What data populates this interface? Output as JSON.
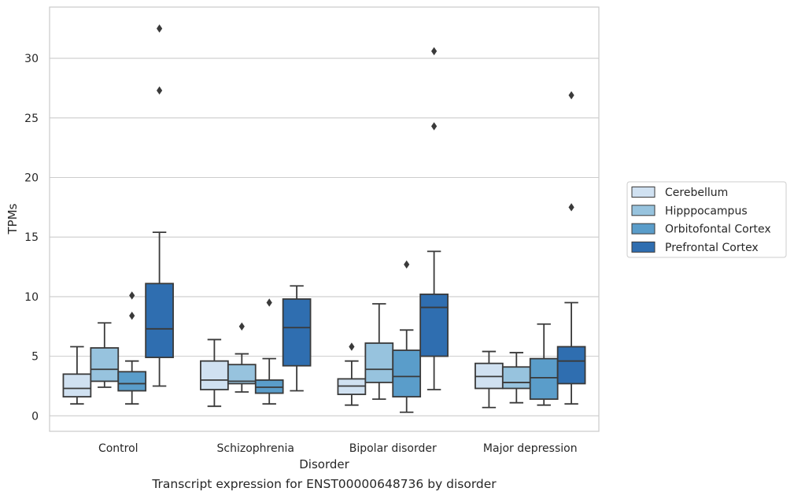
{
  "chart_data": {
    "type": "box",
    "caption": "Transcript expression for ENST00000648736 by disorder",
    "xlabel": "Disorder",
    "ylabel": "TPMs",
    "ylim": [
      -1.3,
      34.3
    ],
    "yticks": [
      0,
      5,
      10,
      15,
      20,
      25,
      30
    ],
    "grid": "horizontal",
    "legend_position": "right",
    "categories": [
      "Control",
      "Schizophrenia",
      "Bipolar disorder",
      "Major depression"
    ],
    "series": [
      {
        "name": "Cerebellum",
        "color": "#d0e1f1",
        "boxes": [
          {
            "whisker_low": 1.0,
            "q1": 1.6,
            "median": 2.3,
            "q3": 3.5,
            "whisker_high": 5.8,
            "outliers": []
          },
          {
            "whisker_low": 0.8,
            "q1": 2.2,
            "median": 3.0,
            "q3": 4.6,
            "whisker_high": 6.4,
            "outliers": []
          },
          {
            "whisker_low": 0.9,
            "q1": 1.8,
            "median": 2.5,
            "q3": 3.1,
            "whisker_high": 4.6,
            "outliers": [
              5.8
            ]
          },
          {
            "whisker_low": 0.7,
            "q1": 2.3,
            "median": 3.3,
            "q3": 4.4,
            "whisker_high": 5.4,
            "outliers": []
          }
        ]
      },
      {
        "name": "Hipppocampus",
        "color": "#97c3de",
        "boxes": [
          {
            "whisker_low": 2.4,
            "q1": 2.9,
            "median": 3.9,
            "q3": 5.7,
            "whisker_high": 7.8,
            "outliers": []
          },
          {
            "whisker_low": 2.0,
            "q1": 2.7,
            "median": 2.9,
            "q3": 4.3,
            "whisker_high": 5.2,
            "outliers": [
              7.5
            ]
          },
          {
            "whisker_low": 1.4,
            "q1": 2.8,
            "median": 3.9,
            "q3": 6.1,
            "whisker_high": 9.4,
            "outliers": []
          },
          {
            "whisker_low": 1.1,
            "q1": 2.3,
            "median": 2.8,
            "q3": 4.1,
            "whisker_high": 5.3,
            "outliers": []
          }
        ]
      },
      {
        "name": "Orbitofontal Cortex",
        "color": "#5a9dca",
        "boxes": [
          {
            "whisker_low": 1.0,
            "q1": 2.1,
            "median": 2.7,
            "q3": 3.7,
            "whisker_high": 4.6,
            "outliers": [
              8.4,
              10.1
            ]
          },
          {
            "whisker_low": 1.0,
            "q1": 1.9,
            "median": 2.4,
            "q3": 3.0,
            "whisker_high": 4.8,
            "outliers": [
              9.5
            ]
          },
          {
            "whisker_low": 0.3,
            "q1": 1.6,
            "median": 3.3,
            "q3": 5.5,
            "whisker_high": 7.2,
            "outliers": [
              12.7
            ]
          },
          {
            "whisker_low": 0.9,
            "q1": 1.4,
            "median": 3.2,
            "q3": 4.8,
            "whisker_high": 7.7,
            "outliers": []
          }
        ]
      },
      {
        "name": "Prefrontal Cortex",
        "color": "#2f6eb0",
        "boxes": [
          {
            "whisker_low": 2.5,
            "q1": 4.9,
            "median": 7.3,
            "q3": 11.1,
            "whisker_high": 15.4,
            "outliers": [
              27.3,
              32.5
            ]
          },
          {
            "whisker_low": 2.1,
            "q1": 4.2,
            "median": 7.4,
            "q3": 9.8,
            "whisker_high": 10.9,
            "outliers": []
          },
          {
            "whisker_low": 2.2,
            "q1": 5.0,
            "median": 9.1,
            "q3": 10.2,
            "whisker_high": 13.8,
            "outliers": [
              24.3,
              30.6
            ]
          },
          {
            "whisker_low": 1.0,
            "q1": 2.7,
            "median": 4.6,
            "q3": 5.8,
            "whisker_high": 9.5,
            "outliers": [
              17.5,
              26.9
            ]
          }
        ]
      }
    ]
  }
}
